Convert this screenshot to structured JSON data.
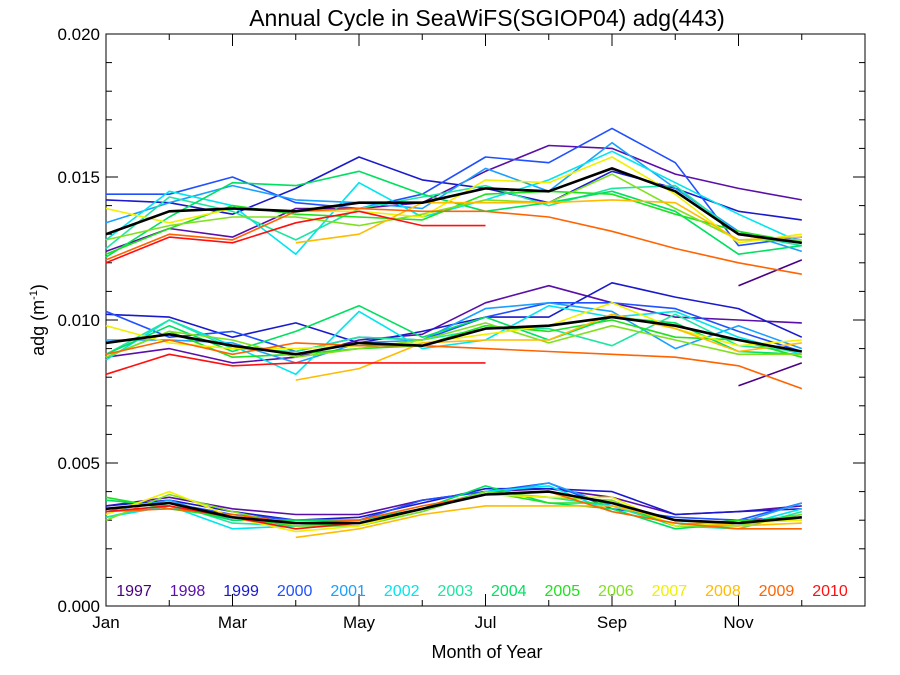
{
  "chart_data": {
    "type": "line",
    "title": "Annual Cycle in SeaWiFS(SGIOP04) adg(443)",
    "xlabel": "Month of Year",
    "ylabel_main": "adg (m",
    "ylabel_sup": "-1",
    "ylabel_close": ")",
    "x_tick_labels": [
      "Jan",
      "Mar",
      "May",
      "Jul",
      "Sep",
      "Nov"
    ],
    "x_tick_months": [
      1,
      3,
      5,
      7,
      9,
      11
    ],
    "y_tick_labels": [
      "0.000",
      "0.005",
      "0.010",
      "0.015",
      "0.020"
    ],
    "y_tick_values": [
      0,
      0.005,
      0.01,
      0.015,
      0.02
    ],
    "xlim": [
      1,
      13
    ],
    "ylim": [
      0,
      0.02
    ],
    "legend_position": "bottom inside plot",
    "groups": [
      "upper",
      "middle",
      "lower"
    ],
    "series": [
      {
        "name": "1997",
        "color": "#4b0082",
        "upper": [
          null,
          null,
          null,
          null,
          null,
          null,
          null,
          null,
          null,
          null,
          0.0112,
          0.0121
        ],
        "middle": [
          null,
          null,
          null,
          null,
          null,
          null,
          null,
          null,
          null,
          null,
          0.0077,
          0.0085
        ],
        "lower": [
          null,
          null,
          null,
          null,
          null,
          null,
          null,
          null,
          null,
          null,
          0.003,
          0.0031
        ]
      },
      {
        "name": "1998",
        "color": "#5a0fa8",
        "upper": [
          0.0124,
          0.0132,
          0.0129,
          0.0139,
          0.0139,
          0.0141,
          0.0152,
          0.0161,
          0.016,
          0.0151,
          0.0146,
          0.0142
        ],
        "middle": [
          0.0087,
          0.009,
          0.0085,
          0.0087,
          0.0093,
          0.0095,
          0.0106,
          0.0112,
          0.0106,
          0.0101,
          0.01,
          0.0099
        ],
        "lower": [
          0.0035,
          0.0038,
          0.0034,
          0.0032,
          0.0032,
          0.0037,
          0.004,
          0.0041,
          0.0038,
          0.0032,
          0.0033,
          0.0035
        ]
      },
      {
        "name": "1999",
        "color": "#1a1acc",
        "upper": [
          0.0142,
          0.0141,
          0.0137,
          0.0146,
          0.0157,
          0.0149,
          0.0146,
          0.0141,
          0.0152,
          0.0146,
          0.0138,
          0.0135
        ],
        "middle": [
          0.0102,
          0.0101,
          0.0094,
          0.0099,
          0.0092,
          0.0096,
          0.0101,
          0.0101,
          0.0113,
          0.0108,
          0.0104,
          0.0094
        ],
        "lower": [
          0.0035,
          0.0037,
          0.0033,
          0.003,
          0.0031,
          0.0036,
          0.0041,
          0.0041,
          0.004,
          0.0032,
          0.0033,
          0.0034
        ]
      },
      {
        "name": "2000",
        "color": "#2050ff",
        "upper": [
          0.0144,
          0.0144,
          0.015,
          0.0141,
          0.0139,
          0.0144,
          0.0157,
          0.0155,
          0.0167,
          0.0155,
          0.0126,
          0.0129
        ],
        "middle": [
          0.0103,
          0.0094,
          0.0096,
          0.0089,
          0.0094,
          0.0093,
          0.0101,
          0.0106,
          0.0106,
          0.0104,
          0.0096,
          0.0089
        ],
        "lower": [
          0.0034,
          0.0036,
          0.0032,
          0.003,
          0.003,
          0.0037,
          0.004,
          0.0043,
          0.0034,
          0.0031,
          0.003,
          0.0036
        ]
      },
      {
        "name": "2001",
        "color": "#1aa0ff",
        "upper": [
          0.0134,
          0.0141,
          0.0147,
          0.0142,
          0.0141,
          0.0139,
          0.0153,
          0.0145,
          0.0162,
          0.0146,
          0.0131,
          0.0124
        ],
        "middle": [
          0.0093,
          0.0093,
          0.0092,
          0.0085,
          0.0092,
          0.0093,
          0.0104,
          0.0106,
          0.0103,
          0.009,
          0.0098,
          0.009
        ],
        "lower": [
          0.0033,
          0.0037,
          0.003,
          0.003,
          0.003,
          0.0034,
          0.0039,
          0.0043,
          0.0035,
          0.003,
          0.0029,
          0.0036
        ]
      },
      {
        "name": "2002",
        "color": "#00e5ee",
        "upper": [
          0.0128,
          0.0145,
          0.014,
          0.0123,
          0.0148,
          0.0136,
          0.0142,
          0.0149,
          0.0159,
          0.0148,
          0.0137,
          0.0127
        ],
        "middle": [
          0.0086,
          0.01,
          0.0091,
          0.0081,
          0.0103,
          0.009,
          0.0093,
          0.0105,
          0.0101,
          0.0103,
          0.0094,
          0.0088
        ],
        "lower": [
          0.0031,
          0.0035,
          0.0027,
          0.0028,
          0.0028,
          0.0033,
          0.004,
          0.0042,
          0.0033,
          0.0029,
          0.0028,
          0.0034
        ]
      },
      {
        "name": "2003",
        "color": "#1ee6a0",
        "upper": [
          0.0125,
          0.0143,
          0.0138,
          0.0128,
          0.0139,
          0.0143,
          0.0147,
          0.014,
          0.0146,
          0.0147,
          0.013,
          0.0126
        ],
        "middle": [
          0.0088,
          0.01,
          0.009,
          0.0089,
          0.0094,
          0.0093,
          0.0097,
          0.0097,
          0.0091,
          0.0102,
          0.0091,
          0.0089
        ],
        "lower": [
          0.0031,
          0.0036,
          0.0029,
          0.0028,
          0.0029,
          0.0034,
          0.0039,
          0.0038,
          0.0035,
          0.0028,
          0.0027,
          0.0033
        ]
      },
      {
        "name": "2004",
        "color": "#00e060",
        "upper": [
          0.0122,
          0.0136,
          0.0148,
          0.0147,
          0.0152,
          0.0144,
          0.0138,
          0.0141,
          0.0145,
          0.0138,
          0.0123,
          0.0126
        ],
        "middle": [
          0.0088,
          0.0098,
          0.0089,
          0.0096,
          0.0105,
          0.0094,
          0.0101,
          0.0093,
          0.0101,
          0.0099,
          0.0089,
          0.0088
        ],
        "lower": [
          0.0037,
          0.0035,
          0.003,
          0.003,
          0.003,
          0.0034,
          0.0042,
          0.0036,
          0.0034,
          0.0027,
          0.0029,
          0.0032
        ]
      },
      {
        "name": "2005",
        "color": "#20e020",
        "upper": [
          0.0123,
          0.0132,
          0.014,
          0.0137,
          0.0136,
          0.0135,
          0.0144,
          0.0145,
          0.0144,
          0.0137,
          0.0131,
          0.0127
        ],
        "middle": [
          0.0087,
          0.0096,
          0.0087,
          0.0088,
          0.009,
          0.0091,
          0.0098,
          0.0096,
          0.01,
          0.0094,
          0.0093,
          0.0087
        ],
        "lower": [
          0.0038,
          0.0034,
          0.0031,
          0.0028,
          0.0029,
          0.0034,
          0.004,
          0.0036,
          0.0036,
          0.0028,
          0.003,
          0.003
        ]
      },
      {
        "name": "2006",
        "color": "#80e020",
        "upper": [
          0.0128,
          0.0133,
          0.0136,
          0.0136,
          0.0133,
          0.0137,
          0.0142,
          0.0141,
          0.0151,
          0.0139,
          0.0128,
          0.0128
        ],
        "middle": [
          0.0087,
          0.0096,
          0.0093,
          0.0087,
          0.009,
          0.0093,
          0.0099,
          0.0092,
          0.0098,
          0.0093,
          0.0088,
          0.0088
        ],
        "lower": [
          0.003,
          0.0039,
          0.0033,
          0.0028,
          0.0028,
          0.0033,
          0.004,
          0.0038,
          0.0037,
          0.0028,
          0.0028,
          0.0032
        ]
      },
      {
        "name": "2007",
        "color": "#f0f000",
        "upper": [
          0.0139,
          0.0134,
          0.0139,
          0.0138,
          0.0138,
          0.0136,
          0.0149,
          0.0148,
          0.0157,
          0.0144,
          0.0127,
          0.013
        ],
        "middle": [
          0.0098,
          0.0092,
          0.009,
          0.009,
          0.0091,
          0.0092,
          0.0095,
          0.0098,
          0.0106,
          0.0097,
          0.0091,
          0.0093
        ],
        "lower": [
          0.0032,
          0.004,
          0.0031,
          0.0026,
          0.0028,
          0.0034,
          0.0039,
          0.0038,
          0.0038,
          0.0028,
          0.0029,
          0.003
        ]
      },
      {
        "name": "2008",
        "color": "#ffbb00",
        "upper": [
          null,
          null,
          null,
          0.0127,
          0.013,
          0.0141,
          0.0141,
          0.0141,
          0.0142,
          0.0141,
          0.0128,
          0.0129
        ],
        "middle": [
          null,
          null,
          null,
          0.0079,
          0.0083,
          0.0092,
          0.0093,
          0.0093,
          0.0102,
          0.0097,
          0.0089,
          0.0092
        ],
        "lower": [
          null,
          null,
          null,
          0.0024,
          0.0027,
          0.0032,
          0.0035,
          0.0035,
          0.0035,
          0.003,
          0.0028,
          0.0029
        ]
      },
      {
        "name": "2009",
        "color": "#ff6400",
        "upper": [
          0.0121,
          0.013,
          0.0128,
          0.0138,
          0.0139,
          0.0138,
          0.0138,
          0.0136,
          0.0131,
          0.0125,
          0.012,
          0.0116
        ],
        "middle": [
          0.0088,
          0.0093,
          0.0088,
          0.0092,
          0.0091,
          0.0091,
          0.009,
          0.0089,
          0.0088,
          0.0087,
          0.0084,
          0.0076
        ],
        "lower": [
          0.0033,
          0.0034,
          0.0032,
          0.0029,
          0.003,
          0.0035,
          0.0039,
          0.004,
          0.0033,
          0.0029,
          0.0027,
          0.0027
        ]
      },
      {
        "name": "2010",
        "color": "#ff1010",
        "upper": [
          0.012,
          0.0129,
          0.0127,
          0.0134,
          0.0138,
          0.0133,
          0.0133,
          null,
          null,
          null,
          null,
          null
        ],
        "middle": [
          0.0081,
          0.0088,
          0.0084,
          0.0085,
          0.0085,
          0.0085,
          0.0085,
          null,
          null,
          null,
          null,
          null
        ],
        "lower": [
          0.0033,
          0.0035,
          0.0031,
          0.0027,
          0.0029,
          0.0034,
          0.0039,
          null,
          null,
          null,
          null,
          null
        ]
      }
    ],
    "mean_series": {
      "color": "#000000",
      "upper": [
        0.013,
        0.0138,
        0.0139,
        0.0138,
        0.0141,
        0.0141,
        0.0146,
        0.0145,
        0.0153,
        0.0145,
        0.013,
        0.0127
      ],
      "middle": [
        0.0092,
        0.0095,
        0.0091,
        0.0088,
        0.0092,
        0.0091,
        0.0097,
        0.0098,
        0.0101,
        0.0098,
        0.0093,
        0.0089
      ],
      "lower": [
        0.0034,
        0.0036,
        0.0031,
        0.0029,
        0.0029,
        0.0034,
        0.0039,
        0.004,
        0.0036,
        0.003,
        0.0029,
        0.0031
      ]
    }
  }
}
